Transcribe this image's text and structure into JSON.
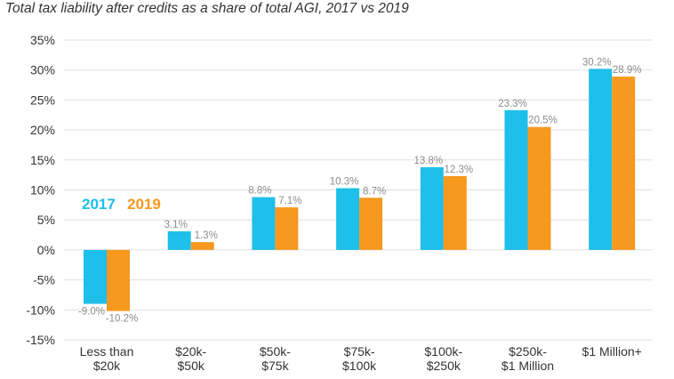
{
  "chart_data": {
    "type": "bar",
    "title": "Total tax liability after credits as a share of total AGI, 2017 vs 2019",
    "xlabel": "",
    "ylabel": "",
    "ylim": [
      -15,
      35
    ],
    "ytick_step": 5,
    "yticks": [
      "35%",
      "30%",
      "25%",
      "20%",
      "15%",
      "10%",
      "5%",
      "0%",
      "-5%",
      "-10%",
      "-15%"
    ],
    "categories": [
      [
        "Less than",
        "$20k"
      ],
      [
        "$20k-",
        "$50k"
      ],
      [
        "$50k-",
        "$75k"
      ],
      [
        "$75k-",
        "$100k"
      ],
      [
        "$100k-",
        "$250k"
      ],
      [
        "$250k-",
        "$1 Million"
      ],
      [
        "$1 Million+"
      ]
    ],
    "series": [
      {
        "name": "2017",
        "color": "#1ebfea",
        "values": [
          -9.0,
          3.1,
          8.8,
          10.3,
          13.8,
          23.3,
          30.2
        ],
        "labels": [
          "-9.0%",
          "3.1%",
          "8.8%",
          "10.3%",
          "13.8%",
          "23.3%",
          "30.2%"
        ]
      },
      {
        "name": "2019",
        "color": "#f7981f",
        "values": [
          -10.2,
          1.3,
          7.1,
          8.7,
          12.3,
          20.5,
          28.9
        ],
        "labels": [
          "-10.2%",
          "1.3%",
          "7.1%",
          "8.7%",
          "12.3%",
          "20.5%",
          "28.9%"
        ]
      }
    ],
    "legend": {
      "placement": "left",
      "entries": [
        "2017",
        "2019"
      ]
    },
    "grid": true
  }
}
